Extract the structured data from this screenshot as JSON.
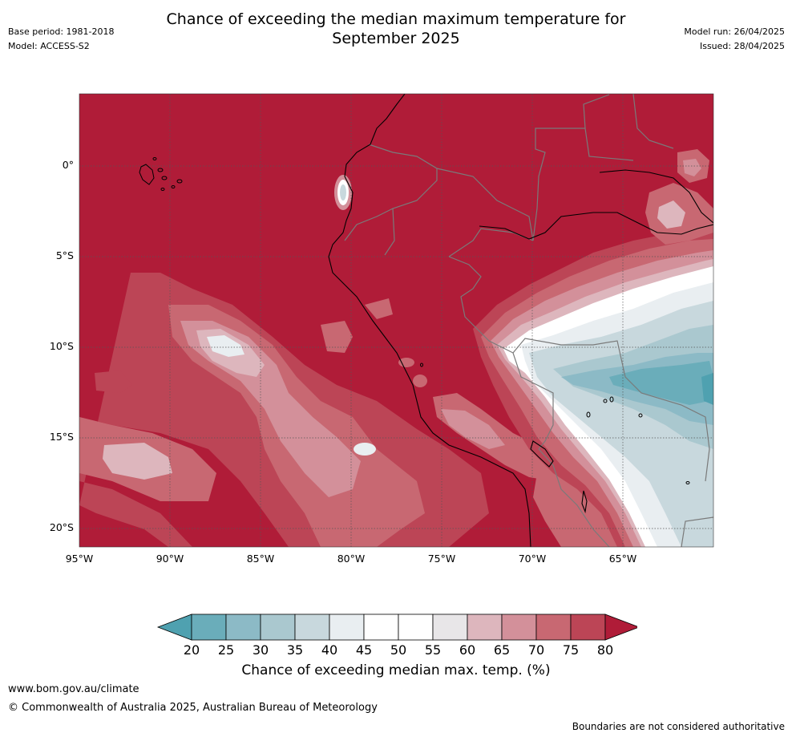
{
  "header": {
    "title_line1": "Chance of exceeding the median maximum temperature for",
    "title_line2": "September 2025",
    "base_period": "Base period: 1981-2018",
    "model": "Model: ACCESS-S2",
    "model_run": "Model run: 26/04/2025",
    "issued": "Issued: 28/04/2025"
  },
  "map": {
    "lat_ticks": [
      "0°",
      "5°S",
      "10°S",
      "15°S",
      "20°S"
    ],
    "lon_ticks": [
      "95°W",
      "90°W",
      "85°W",
      "80°W",
      "75°W",
      "70°W",
      "65°W"
    ],
    "background_color": "#b01c38",
    "coast_color": "#000000",
    "border_color": "#808080"
  },
  "legend": {
    "levels": [
      "20",
      "25",
      "30",
      "35",
      "40",
      "45",
      "50",
      "55",
      "60",
      "65",
      "70",
      "75",
      "80"
    ],
    "colors": [
      "#4fa1b0",
      "#6aadba",
      "#8cbac6",
      "#aac8cf",
      "#c8d8dd",
      "#e9eef1",
      "#ffffff",
      "#ffffff",
      "#e8e6e8",
      "#ddb6bd",
      "#d3909a",
      "#c86872",
      "#bc4556",
      "#b01c38"
    ],
    "title": "Chance of exceeding median max. temp. (%)"
  },
  "footer": {
    "url": "www.bom.gov.au/climate",
    "copyright": "© Commonwealth of Australia 2025, Australian Bureau of Meteorology",
    "disclaimer": "Boundaries are not considered authoritative"
  }
}
